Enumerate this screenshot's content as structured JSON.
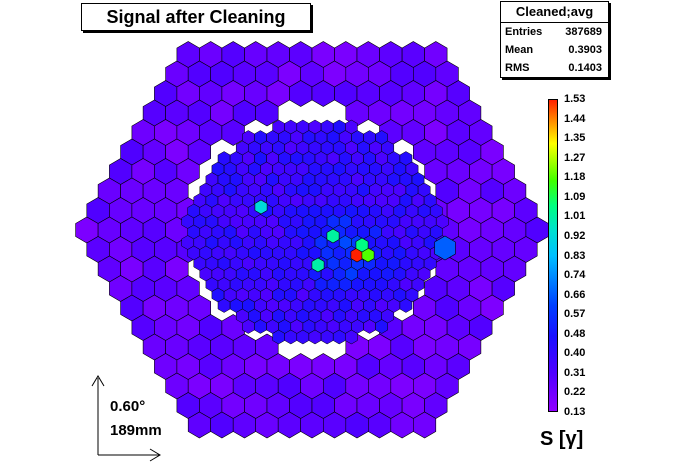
{
  "title": "Signal after Cleaning",
  "stats": {
    "header": "Cleaned;avg",
    "rows": [
      {
        "label": "Entries",
        "value": "387689"
      },
      {
        "label": "Mean",
        "value": "0.3903"
      },
      {
        "label": "RMS",
        "value": "0.1403"
      }
    ]
  },
  "colorbar": {
    "min": 0.13,
    "max": 1.53,
    "labels": [
      "1.53",
      "1.44",
      "1.35",
      "1.27",
      "1.18",
      "1.09",
      "1.01",
      "0.92",
      "0.83",
      "0.74",
      "0.66",
      "0.57",
      "0.48",
      "0.40",
      "0.31",
      "0.22",
      "0.13"
    ]
  },
  "axis_title": "S [γ]",
  "scale": {
    "angle": "0.60°",
    "length": "189mm"
  },
  "chart_data": {
    "type": "heatmap",
    "title": "Signal after Cleaning",
    "zlabel": "S [γ]",
    "zlim": [
      0.13,
      1.53
    ],
    "description_values": {
      "inner_pixels_typical": 0.35,
      "outer_pixels_typical": 0.22,
      "hot_pixels": [
        {
          "region": "center",
          "value": 1.53
        },
        {
          "region": "center-right",
          "value": 1.18
        },
        {
          "region": "center-left",
          "value": 1.05
        },
        {
          "region": "center-upper",
          "value": 1.01
        },
        {
          "region": "right-edge outer",
          "value": 0.66
        },
        {
          "region": "left-upper inner",
          "value": 0.92
        }
      ]
    },
    "stats": {
      "entries": 387689,
      "mean": 0.3903,
      "rms": 0.1403
    }
  },
  "colors": {
    "low": "#9100ff",
    "mid": "#0040ff",
    "high": "#ff2000"
  }
}
